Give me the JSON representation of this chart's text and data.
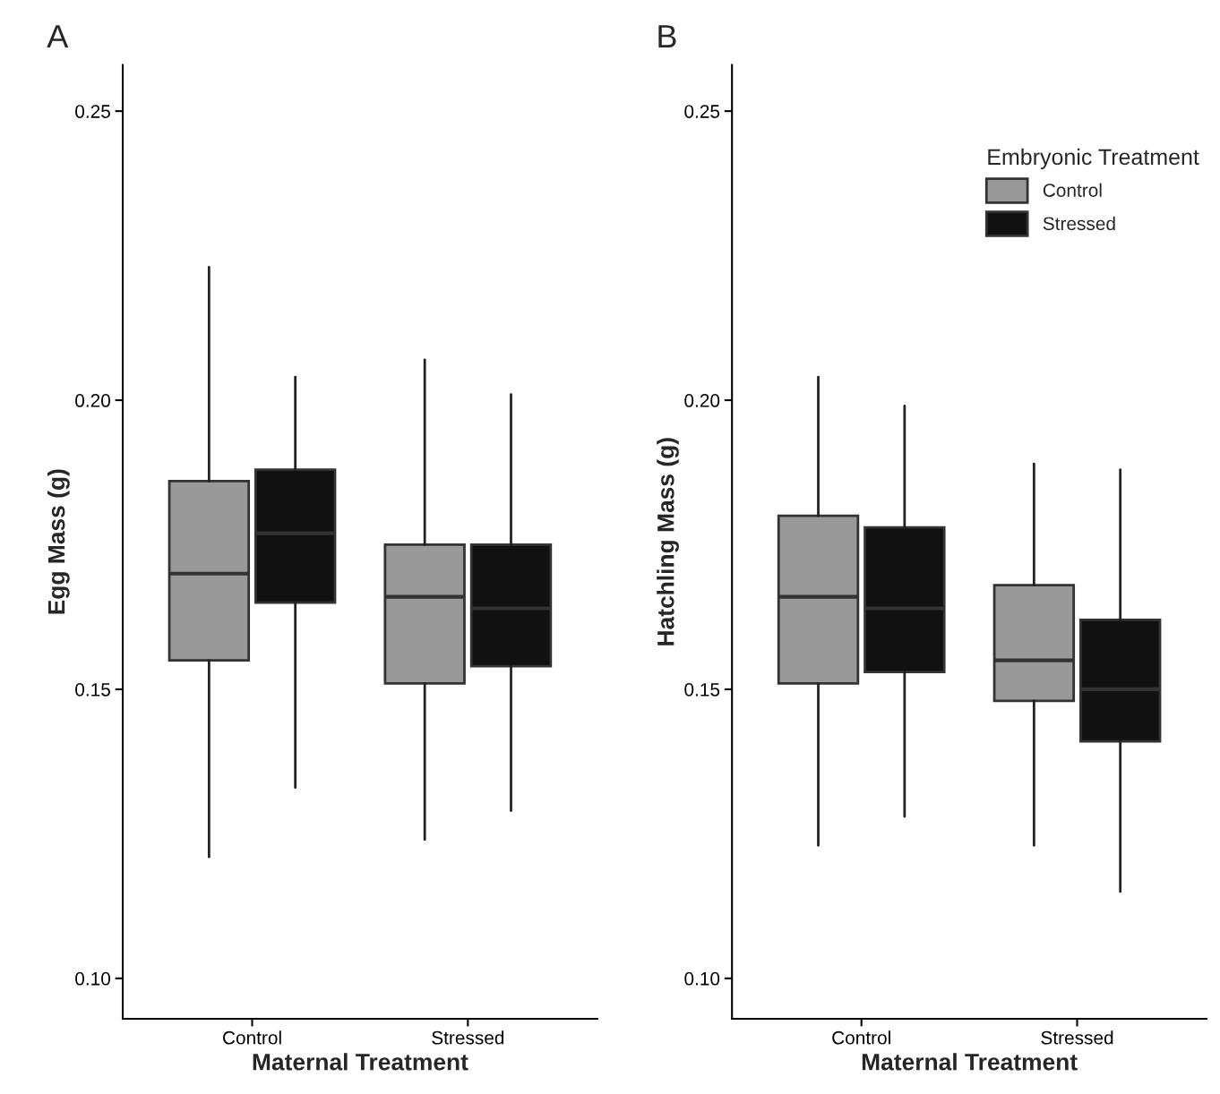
{
  "chart_data": [
    {
      "type": "box",
      "title": "A",
      "xlabel": "Maternal Treatment",
      "ylabel": "Egg Mass (g)",
      "categories": [
        "Control",
        "Stressed"
      ],
      "ylim": [
        0.093,
        0.258
      ],
      "yticks": [
        {
          "value": 0.1,
          "label": "0.10"
        },
        {
          "value": 0.15,
          "label": "0.15"
        },
        {
          "value": 0.2,
          "label": "0.20"
        },
        {
          "value": 0.25,
          "label": "0.25"
        }
      ],
      "grid": false,
      "series": [
        {
          "color": "#999999",
          "boxes": [
            {
              "low": 0.121,
              "q1": 0.155,
              "median": 0.17,
              "q3": 0.186,
              "high": 0.223
            },
            {
              "low": 0.124,
              "q1": 0.151,
              "median": 0.166,
              "q3": 0.175,
              "high": 0.207
            }
          ]
        },
        {
          "color": "#111111",
          "boxes": [
            {
              "low": 0.133,
              "q1": 0.165,
              "median": 0.177,
              "q3": 0.188,
              "high": 0.204
            },
            {
              "low": 0.129,
              "q1": 0.154,
              "median": 0.164,
              "q3": 0.175,
              "high": 0.201
            }
          ]
        }
      ]
    },
    {
      "type": "box",
      "title": "B",
      "xlabel": "Maternal Treatment",
      "ylabel": "Hatchling Mass (g)",
      "legend_title": "Embryonic Treatment",
      "categories": [
        "Control",
        "Stressed"
      ],
      "ylim": [
        0.093,
        0.258
      ],
      "yticks": [
        {
          "value": 0.1,
          "label": "0.10"
        },
        {
          "value": 0.15,
          "label": "0.15"
        },
        {
          "value": 0.2,
          "label": "0.20"
        },
        {
          "value": 0.25,
          "label": "0.25"
        }
      ],
      "grid": false,
      "legend": "top right",
      "series": [
        {
          "name": "Control",
          "color": "#999999",
          "boxes": [
            {
              "low": 0.123,
              "q1": 0.151,
              "median": 0.166,
              "q3": 0.18,
              "high": 0.204
            },
            {
              "low": 0.123,
              "q1": 0.148,
              "median": 0.155,
              "q3": 0.168,
              "high": 0.189
            }
          ]
        },
        {
          "name": "Stressed",
          "color": "#111111",
          "boxes": [
            {
              "low": 0.128,
              "q1": 0.153,
              "median": 0.164,
              "q3": 0.178,
              "high": 0.199
            },
            {
              "low": 0.115,
              "q1": 0.141,
              "median": 0.15,
              "q3": 0.162,
              "high": 0.188
            }
          ]
        }
      ]
    }
  ]
}
